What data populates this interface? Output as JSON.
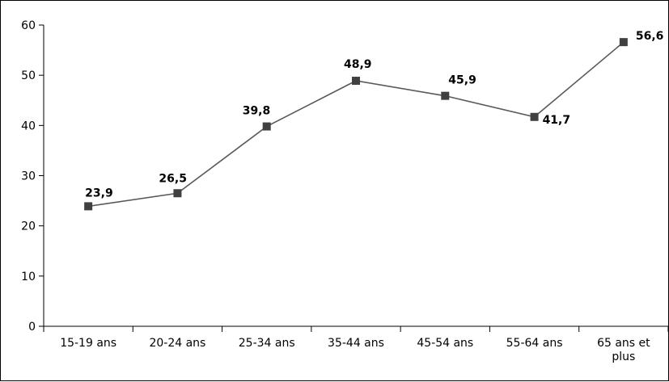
{
  "chart_data": {
    "type": "line",
    "title": "",
    "xlabel": "",
    "ylabel": "",
    "categories": [
      "15-19 ans",
      "20-24 ans",
      "25-34 ans",
      "35-44 ans",
      "45-54 ans",
      "55-64 ans",
      "65 ans et plus"
    ],
    "values": [
      23.9,
      26.5,
      39.8,
      48.9,
      45.9,
      41.7,
      56.6
    ],
    "data_labels": [
      "23,9",
      "26,5",
      "39,8",
      "48,9",
      "45,9",
      "41,7",
      "56,6"
    ],
    "yticks": [
      "0",
      "10",
      "20",
      "30",
      "40",
      "50",
      "60"
    ],
    "ylim": [
      0,
      60
    ],
    "grid": false,
    "legend": "none",
    "colors": {
      "line": "#595959",
      "marker": "#404040",
      "axis": "#000000"
    },
    "marker": "square"
  }
}
